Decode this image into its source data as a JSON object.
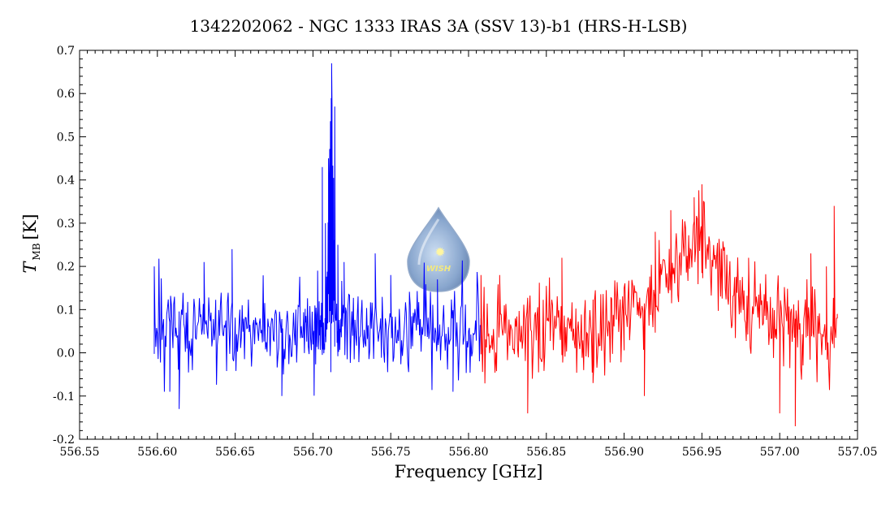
{
  "chart_data": {
    "type": "line",
    "title": "1342202062 - NGC 1333 IRAS 3A (SSV 13)-b1 (HRS-H-LSB)",
    "xlabel": "Frequency [GHz]",
    "ylabel_main": "T",
    "ylabel_sub": "MB",
    "ylabel_unit": "[K]",
    "xlim": [
      556.55,
      557.05
    ],
    "ylim": [
      -0.2,
      0.7
    ],
    "x_ticks": [
      "556.55",
      "556.60",
      "556.65",
      "556.70",
      "556.75",
      "556.80",
      "556.85",
      "556.90",
      "556.95",
      "557.00",
      "557.05"
    ],
    "y_ticks": [
      "-0.2",
      "-0.1",
      "0.0",
      "0.1",
      "0.2",
      "0.3",
      "0.4",
      "0.5",
      "0.6",
      "0.7"
    ],
    "grid": false,
    "logo_text": "WISH",
    "series": [
      {
        "color": "#0000ff",
        "step": 0.0005,
        "noise_sigma": 0.05,
        "baseline": [
          [
            556.598,
            0.05
          ],
          [
            556.7,
            0.05
          ],
          [
            556.808,
            0.05
          ]
        ],
        "x": [
          556.598,
          556.608,
          556.614,
          556.63,
          556.648,
          556.68,
          556.695,
          556.703,
          556.706,
          556.708,
          556.71,
          556.712,
          556.714,
          556.716,
          556.72,
          556.74,
          556.75,
          556.78,
          556.79,
          556.8,
          556.808
        ],
        "y": [
          0.2,
          -0.09,
          -0.13,
          0.21,
          0.24,
          -0.1,
          0.07,
          0.19,
          0.43,
          0.3,
          0.45,
          0.67,
          0.57,
          0.25,
          0.21,
          0.23,
          0.18,
          0.17,
          -0.09,
          0.05,
          0.08
        ]
      },
      {
        "color": "#ff0000",
        "step": 0.0005,
        "noise_sigma": 0.05,
        "baseline": [
          [
            556.808,
            0.05
          ],
          [
            556.89,
            0.05
          ],
          [
            556.925,
            0.15
          ],
          [
            556.95,
            0.28
          ],
          [
            556.975,
            0.12
          ],
          [
            557.037,
            0.04
          ]
        ],
        "x": [
          556.808,
          556.82,
          556.838,
          556.86,
          556.88,
          556.9,
          556.913,
          556.92,
          556.93,
          556.945,
          556.95,
          556.96,
          556.98,
          557.0,
          557.01,
          557.02,
          557.03,
          557.035,
          557.037
        ],
        "y": [
          0.18,
          0.18,
          -0.14,
          0.22,
          -0.07,
          0.15,
          -0.1,
          0.28,
          0.33,
          0.36,
          0.39,
          0.23,
          0.22,
          -0.14,
          -0.17,
          0.23,
          0.2,
          0.34,
          0.09
        ]
      }
    ]
  }
}
